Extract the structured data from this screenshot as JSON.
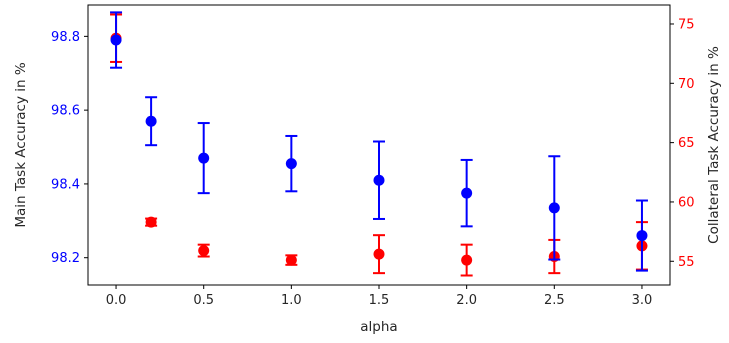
{
  "chart_data": {
    "type": "scatter",
    "xlabel": "alpha",
    "ylabel_left": "Main Task Accuracy in %",
    "ylabel_right": "Collateral Task Accuracy in %",
    "x_ticks": [
      "0.0",
      "0.5",
      "1.0",
      "1.5",
      "2.0",
      "2.5",
      "3.0"
    ],
    "y_left_ticks": [
      "98.2",
      "98.4",
      "98.6",
      "98.8"
    ],
    "y_right_ticks": [
      "55",
      "60",
      "65",
      "70",
      "75"
    ],
    "xlim": [
      -0.16,
      3.16
    ],
    "ylim_left": [
      98.126,
      98.885
    ],
    "ylim_right": [
      53.0,
      76.6
    ],
    "grid": false,
    "colors": {
      "left_series": "#0000ff",
      "right_series": "#ff0000",
      "axis_text": "#262626"
    },
    "series": [
      {
        "axis": "left",
        "x": [
          0.0,
          0.2,
          0.5,
          1.0,
          1.5,
          2.0,
          2.5,
          3.0
        ],
        "y": [
          98.79,
          98.57,
          98.47,
          98.455,
          98.41,
          98.375,
          98.335,
          98.26
        ],
        "err": [
          0.075,
          0.065,
          0.095,
          0.075,
          0.105,
          0.09,
          0.14,
          0.095
        ]
      },
      {
        "axis": "right",
        "x": [
          0.0,
          0.2,
          0.5,
          1.0,
          1.5,
          2.0,
          2.5,
          3.0
        ],
        "y": [
          73.8,
          58.3,
          55.9,
          55.1,
          55.6,
          55.1,
          55.4,
          56.3
        ],
        "err": [
          2.0,
          0.3,
          0.5,
          0.4,
          1.6,
          1.3,
          1.4,
          2.0
        ]
      }
    ]
  }
}
